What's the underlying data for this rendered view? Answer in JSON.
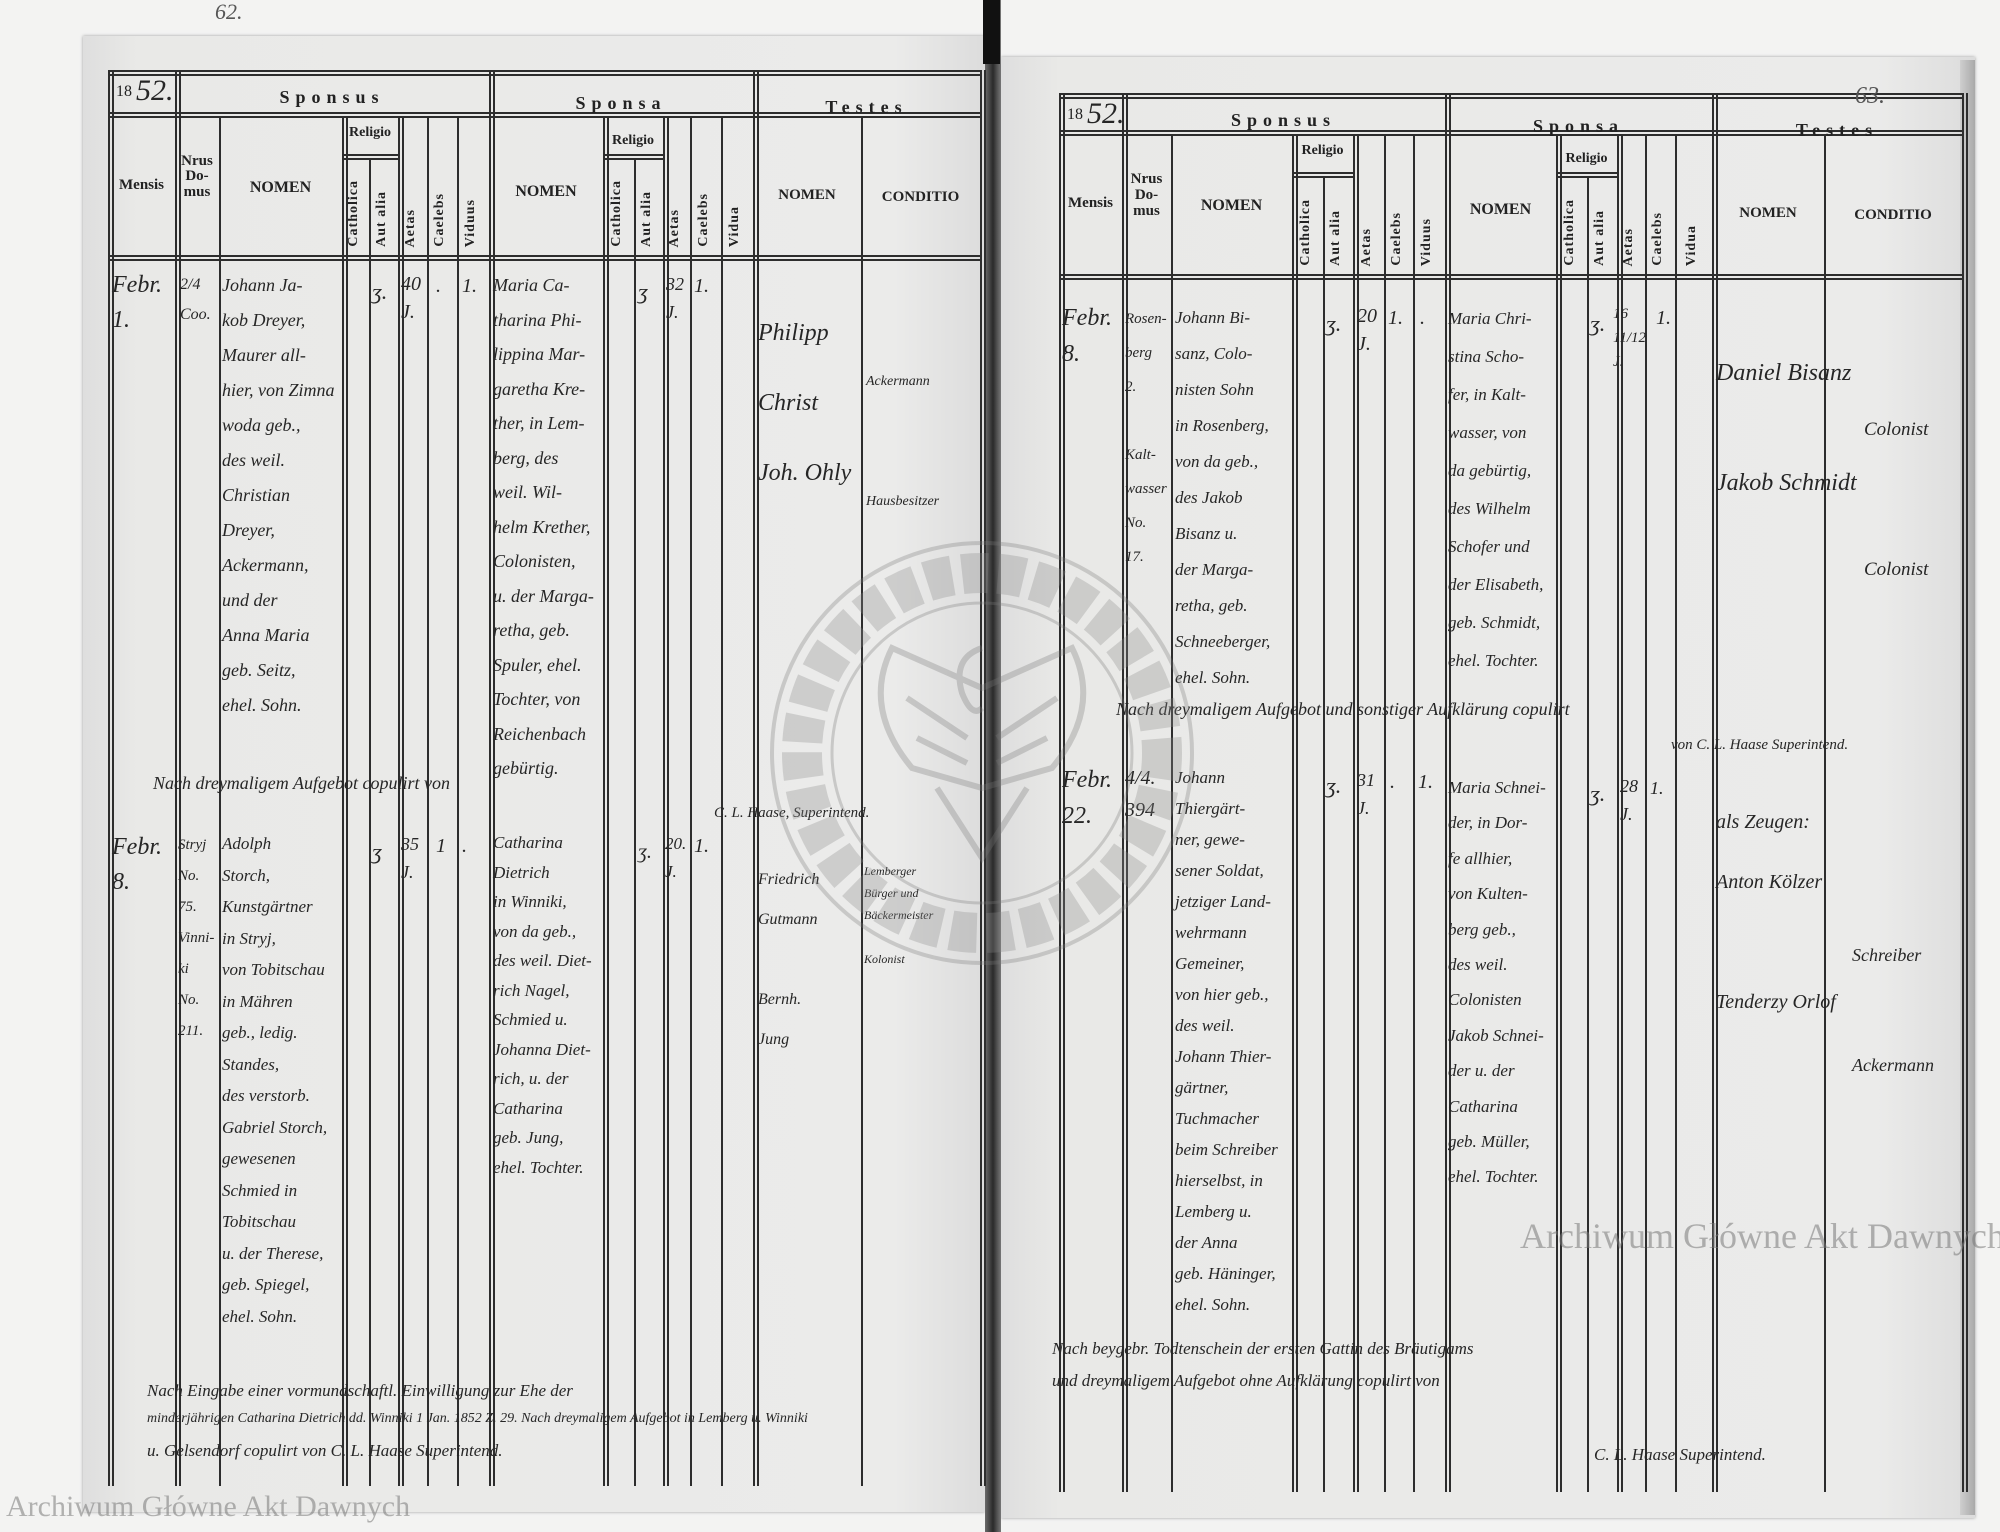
{
  "headers": {
    "sponsus": "Sponsus",
    "sponsa": "Sponsa",
    "testes": "Testes",
    "mensis": "Mensis",
    "nrus_domus": "Nrus\nDo-\nmus",
    "nomen": "NOMEN",
    "religio": "Religio",
    "catholica": "Catholica",
    "aut_alia": "Aut alia",
    "aetas": "Aetas",
    "caelebs": "Caelebs",
    "viduus": "Viduus",
    "vidua": "Vidua",
    "conditio": "CONDITIO"
  },
  "left_page": {
    "page_number": "62.",
    "year_prefix": "18",
    "year_suffix": "52.",
    "entries": [
      {
        "mensis": "Febr.\n1.",
        "nrus_domus": "2/4\nCoo.",
        "sponsus": {
          "nomen": "Johann Ja-\nkob Dreyer,\nMaurer all-\nhier, von Zimna\nwoda geb.,\ndes weil.\nChristian\nDreyer,\nAckermann,\nund der\nAnna Maria\ngeb. Seitz,\nehel. Sohn.",
          "catholica": "ʒ.",
          "aetas": "40\nJ.",
          "caelebs": ".",
          "viduus": "1."
        },
        "sponsa": {
          "nomen": "Maria Ca-\ntharina Phi-\nlippina Mar-\ngaretha Kre-\nther, in Lem-\nberg, des\nweil. Wil-\nhelm Krether,\nColonisten,\nu. der Marga-\nretha, geb.\nSpuler, ehel.\nTochter, von\nReichenbach\ngebürtig.",
          "catholica": "ʒ",
          "aetas": "32\nJ.",
          "caelebs": "1."
        },
        "testes": {
          "nomen": "Philipp\nChrist\nJoh. Ohly",
          "conditio": "Ackermann\nHausbesitzer"
        }
      },
      {
        "mensis": "Febr.\n8.",
        "nrus_domus": "Stryj\nNo.\n75.\nVinni-\nki\nNo.\n211.",
        "sponsus": {
          "nomen": "Adolph\nStorch,\nKunstgärtner\nin Stryj,\nvon Tobitschau\nin Mähren\ngeb., ledig.\nStandes,\ndes verstorb.\nGabriel Storch,\ngewesenen\nSchmied in\nTobitschau\nu. der Therese,\ngeb. Spiegel,\nehel. Sohn.",
          "catholica": "ʒ",
          "aetas": "35\nJ.",
          "caelebs": "1",
          "viduus": "."
        },
        "sponsa": {
          "nomen": "Catharina\nDietrich\nin Winniki,\nvon da geb.,\ndes weil. Diet-\nrich Nagel,\nSchmied u.\nJohanna Diet-\nrich, u. der\nCatharina\ngeb. Jung,\nehel. Tochter.",
          "catholica": "ʒ.",
          "aetas": "20.\nJ.",
          "caelebs": "1."
        },
        "testes": {
          "nomen": "Friedrich\nGutmann\n\nBernh.\nJung",
          "conditio": "Lemberger\nBürger und\nBäckermeister\n\nKolonist"
        }
      }
    ],
    "notes": [
      "Nach dreymaligem Aufgebot copulirt von",
      "C. L. Haase, Superintend.",
      "Nach Eingabe einer vormundschaftl. Einwilligung zur Ehe der",
      "minderjährigen Catharina Dietrich dd. Winniki 1 Jan. 1852 Z. 29. Nach dreymaligem Aufgebot in Lemberg u. Winniki",
      "u. Gelsendorf copulirt von C. L. Haase Superintend."
    ]
  },
  "right_page": {
    "page_number": "63.",
    "year_prefix": "18",
    "year_suffix": "52.",
    "entries": [
      {
        "mensis": "Febr.\n8.",
        "nrus_domus": "Rosen-\nberg\n2.\n\nKalt-\nwasser\nNo.\n17.",
        "sponsus": {
          "nomen": "Johann Bi-\nsanz, Colo-\nnisten Sohn\nin Rosenberg,\nvon da geb.,\ndes Jakob\nBisanz u.\nder Marga-\nretha, geb.\nSchneeberger,\nehel. Sohn.",
          "catholica": "ʒ.",
          "aetas": "20\nJ.",
          "caelebs": "1.",
          "viduus": "."
        },
        "sponsa": {
          "nomen": "Maria Chri-\nstina Scho-\nfer, in Kalt-\nwasser, von\nda gebürtig,\ndes Wilhelm\nSchofer und\nder Elisabeth,\ngeb. Schmidt,\nehel. Tochter.",
          "catholica": "ʒ.",
          "aetas": "16\n11/12\nJ.",
          "caelebs": "1."
        },
        "testes": {
          "nomen": "Daniel Bisanz\nJakob Schmidt",
          "conditio": "Colonist\nColonist"
        }
      },
      {
        "mensis": "Febr.\n22.",
        "nrus_domus": "4/4.\n394",
        "sponsus": {
          "nomen": "Johann\nThiergärt-\nner, gewe-\nsener Soldat,\njetziger Land-\nwehrmann\nGemeiner,\nvon hier geb.,\ndes weil.\nJohann Thier-\ngärtner,\nTuchmacher\nbeim Schreiber\nhierselbst, in\nLemberg u.\nder Anna\ngeb. Häninger,\nehel. Sohn.",
          "catholica": "ʒ.",
          "aetas": "31\nJ.",
          "caelebs": ".",
          "viduus": "1."
        },
        "sponsa": {
          "nomen": "Maria Schnei-\nder, in Dor-\nfe allhier,\nvon Kulten-\nberg geb.,\ndes weil.\nColonisten\nJakob Schnei-\nder u. der\nCatharina\ngeb. Müller,\nehel. Tochter.",
          "catholica": "ʒ.",
          "aetas": "28\nJ.",
          "caelebs": "1."
        },
        "testes": {
          "nomen": "als Zeugen:\nAnton Kölzer\n\nTenderzy Orlof",
          "conditio": "Schreiber\nAckermann"
        }
      }
    ],
    "notes": [
      "Nach dreymaligem Aufgebot und sonstiger Aufklärung copulirt",
      "von C. L. Haase Superintend.",
      "Nach beygebr. Todtenschein der ersten Gattin des Bräutigams",
      "und dreymaligem Aufgebot ohne Aufklärung copulirt von",
      "C. L. Haase Superintend."
    ]
  },
  "watermarks": {
    "archive_text": "Archiwum Główne Akt Dawnych",
    "seal_text": "ARCHIWUM GŁÓWNE AKT DAWNYCH"
  }
}
